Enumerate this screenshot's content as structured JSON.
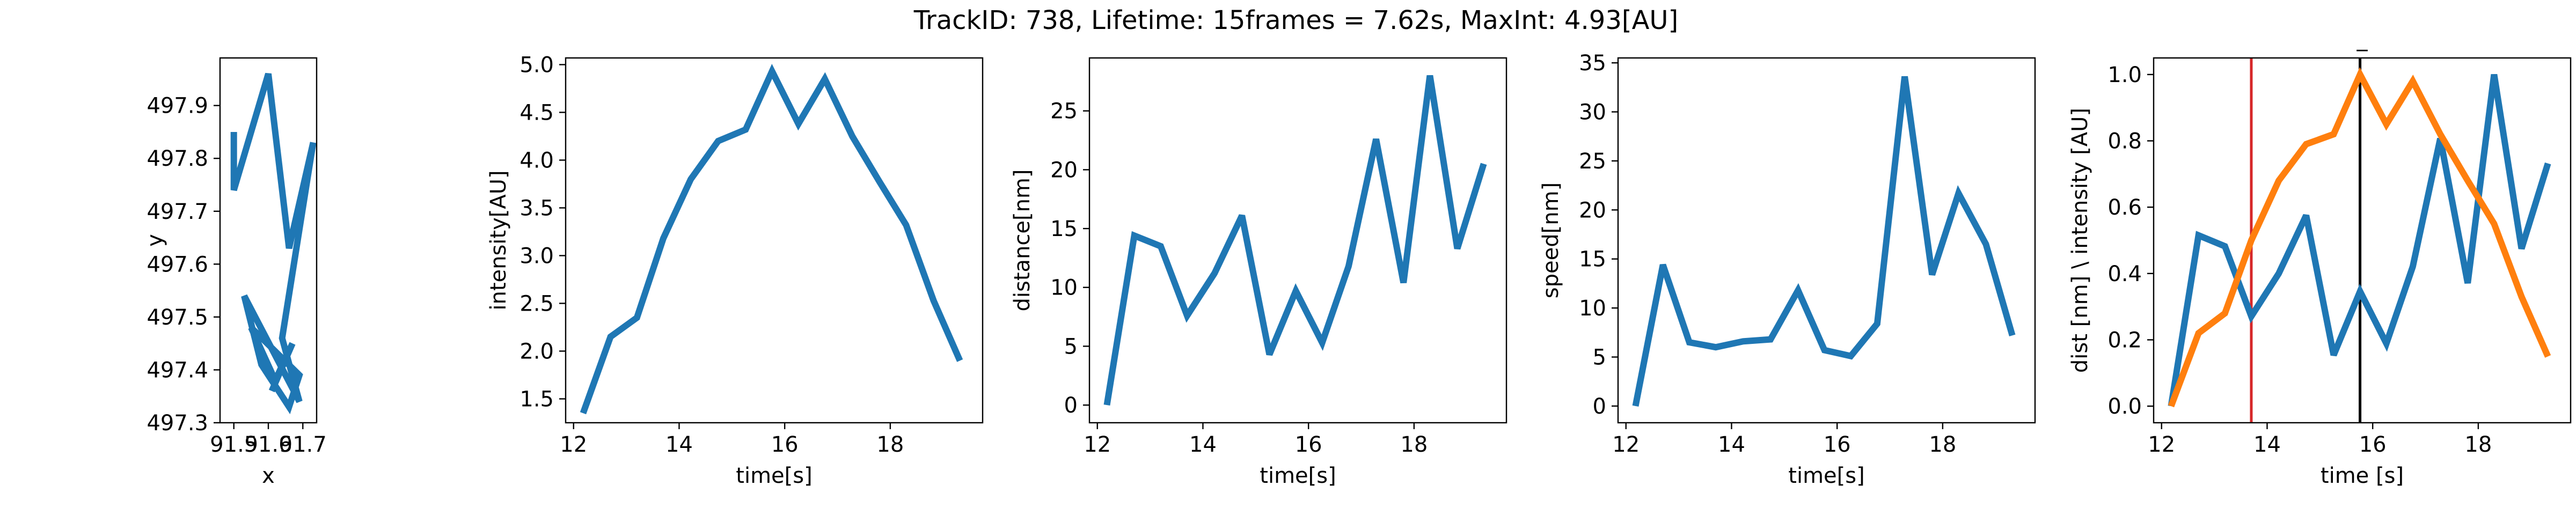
{
  "figure_title": "TrackID: 738, Lifetime: 15frames = 7.62s, MaxInt: 4.93[AU]",
  "colors": {
    "blue": "#1f77b4",
    "orange": "#ff7f0e",
    "red": "#d62728",
    "black": "#000000"
  },
  "chart_data": [
    {
      "type": "line",
      "title": "",
      "xlabel": "x",
      "ylabel": "y",
      "xlim": [
        91.46,
        91.74
      ],
      "ylim": [
        497.3,
        497.99
      ],
      "xticks": [
        91.5,
        91.6,
        91.7
      ],
      "xtick_labels": [
        "91.5",
        "91.6",
        "91.7"
      ],
      "yticks": [
        497.3,
        497.4,
        497.5,
        497.6,
        497.7,
        497.8,
        497.9
      ],
      "ytick_labels": [
        "497.3",
        "497.4",
        "497.5",
        "497.6",
        "497.7",
        "497.8",
        "497.9"
      ],
      "series": [
        {
          "color": "blue",
          "x": [
            91.5,
            91.5,
            91.6,
            91.66,
            91.73,
            91.64,
            91.69,
            91.53,
            91.58,
            91.66,
            91.69,
            91.55,
            91.62,
            91.67,
            91.61
          ],
          "y": [
            497.85,
            497.74,
            497.96,
            497.63,
            497.83,
            497.46,
            497.34,
            497.54,
            497.41,
            497.33,
            497.39,
            497.48,
            497.38,
            497.45,
            497.36
          ]
        }
      ]
    },
    {
      "type": "line",
      "title": "",
      "xlabel": "time[s]",
      "ylabel": "intensity[AU]",
      "xlim": [
        11.85,
        19.75
      ],
      "ylim": [
        1.25,
        5.07
      ],
      "xticks": [
        12,
        14,
        16,
        18
      ],
      "xtick_labels": [
        "12",
        "14",
        "16",
        "18"
      ],
      "yticks": [
        1.5,
        2.0,
        2.5,
        3.0,
        3.5,
        4.0,
        4.5,
        5.0
      ],
      "ytick_labels": [
        "1.5",
        "2.0",
        "2.5",
        "3.0",
        "3.5",
        "4.0",
        "4.5",
        "5.0"
      ],
      "series": [
        {
          "color": "blue",
          "x": [
            12.18,
            12.7,
            13.2,
            13.7,
            14.22,
            14.74,
            15.26,
            15.76,
            16.26,
            16.76,
            17.28,
            17.8,
            18.3,
            18.82,
            19.32
          ],
          "y": [
            1.35,
            2.15,
            2.35,
            3.18,
            3.8,
            4.2,
            4.32,
            4.93,
            4.38,
            4.85,
            4.25,
            3.77,
            3.32,
            2.53,
            1.9
          ]
        }
      ]
    },
    {
      "type": "line",
      "title": "",
      "xlabel": "time[s]",
      "ylabel": "distance[nm]",
      "xlim": [
        11.85,
        19.75
      ],
      "ylim": [
        -1.5,
        29.5
      ],
      "xticks": [
        12,
        14,
        16,
        18
      ],
      "xtick_labels": [
        "12",
        "14",
        "16",
        "18"
      ],
      "yticks": [
        0,
        5,
        10,
        15,
        20,
        25
      ],
      "ytick_labels": [
        "0",
        "5",
        "10",
        "15",
        "20",
        "25"
      ],
      "series": [
        {
          "color": "blue",
          "x": [
            12.18,
            12.7,
            13.2,
            13.7,
            14.22,
            14.74,
            15.26,
            15.76,
            16.26,
            16.76,
            17.28,
            17.8,
            18.3,
            18.82,
            19.32
          ],
          "y": [
            0,
            14.4,
            13.5,
            7.6,
            11.2,
            16.1,
            4.3,
            9.7,
            5.3,
            11.8,
            22.6,
            10.4,
            28.0,
            13.3,
            20.5
          ]
        }
      ]
    },
    {
      "type": "line",
      "title": "",
      "xlabel": "time[s]",
      "ylabel": "speed[nm]",
      "xlim": [
        11.85,
        19.75
      ],
      "ylim": [
        -1.7,
        35.5
      ],
      "xticks": [
        12,
        14,
        16,
        18
      ],
      "xtick_labels": [
        "12",
        "14",
        "16",
        "18"
      ],
      "yticks": [
        0,
        5,
        10,
        15,
        20,
        25,
        30,
        35
      ],
      "ytick_labels": [
        "0",
        "5",
        "10",
        "15",
        "20",
        "25",
        "30",
        "35"
      ],
      "series": [
        {
          "color": "blue",
          "x": [
            12.18,
            12.7,
            13.2,
            13.7,
            14.22,
            14.74,
            15.26,
            15.76,
            16.26,
            16.76,
            17.28,
            17.8,
            18.3,
            18.82,
            19.32
          ],
          "y": [
            0,
            14.4,
            6.5,
            6.0,
            6.6,
            6.8,
            11.8,
            5.7,
            5.1,
            8.4,
            33.6,
            13.4,
            21.7,
            16.5,
            7.2
          ]
        }
      ]
    },
    {
      "type": "line",
      "title": "_",
      "xlabel": "time [s]",
      "ylabel": "dist [nm] \\ intensity [AU]",
      "xlim": [
        11.85,
        19.75
      ],
      "ylim": [
        -0.05,
        1.05
      ],
      "xticks": [
        12,
        14,
        16,
        18
      ],
      "xtick_labels": [
        "12",
        "14",
        "16",
        "18"
      ],
      "yticks": [
        0.0,
        0.2,
        0.4,
        0.6,
        0.8,
        1.0
      ],
      "ytick_labels": [
        "0.0",
        "0.2",
        "0.4",
        "0.6",
        "0.8",
        "1.0"
      ],
      "vlines": [
        {
          "x": 13.7,
          "color": "red"
        },
        {
          "x": 15.76,
          "color": "black"
        }
      ],
      "series": [
        {
          "color": "blue",
          "x": [
            12.18,
            12.7,
            13.2,
            13.7,
            14.22,
            14.74,
            15.26,
            15.76,
            16.26,
            16.76,
            17.28,
            17.8,
            18.3,
            18.82,
            19.32
          ],
          "y": [
            0.0,
            0.515,
            0.482,
            0.271,
            0.4,
            0.575,
            0.154,
            0.346,
            0.189,
            0.421,
            0.807,
            0.371,
            1.0,
            0.475,
            0.732
          ]
        },
        {
          "color": "orange",
          "x": [
            12.18,
            12.7,
            13.2,
            13.7,
            14.22,
            14.74,
            15.26,
            15.76,
            16.26,
            16.76,
            17.28,
            17.8,
            18.3,
            18.82,
            19.32
          ],
          "y": [
            0.0,
            0.22,
            0.28,
            0.5,
            0.68,
            0.79,
            0.82,
            1.0,
            0.85,
            0.98,
            0.82,
            0.68,
            0.55,
            0.33,
            0.15
          ]
        }
      ]
    }
  ]
}
